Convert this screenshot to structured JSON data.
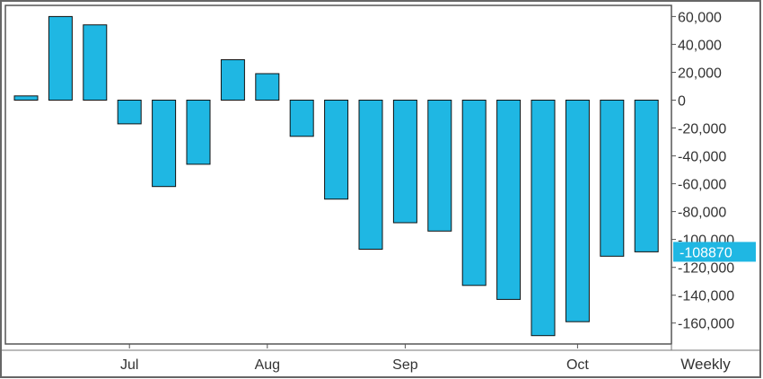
{
  "chart_data": {
    "type": "bar",
    "period": "Weekly",
    "x_month_labels": [
      {
        "label": "Jul",
        "at_bar": 3
      },
      {
        "label": "Aug",
        "at_bar": 7
      },
      {
        "label": "Sep",
        "at_bar": 11
      },
      {
        "label": "Oct",
        "at_bar": 16
      }
    ],
    "values": [
      3000,
      60000,
      54000,
      -17000,
      -62000,
      -46000,
      29000,
      19000,
      -26000,
      -71000,
      -107000,
      -88000,
      -94000,
      -133000,
      -143000,
      -169000,
      -159000,
      -112000,
      -108870
    ],
    "ylim": [
      -175000,
      68000
    ],
    "y_ticks": [
      {
        "value": 60000,
        "label": "60,000"
      },
      {
        "value": 40000,
        "label": "40,000"
      },
      {
        "value": 20000,
        "label": "20,000"
      },
      {
        "value": 0,
        "label": "0"
      },
      {
        "value": -20000,
        "label": "-20,000"
      },
      {
        "value": -40000,
        "label": "-40,000"
      },
      {
        "value": -60000,
        "label": "-60,000"
      },
      {
        "value": -80000,
        "label": "-80,000"
      },
      {
        "value": -100000,
        "label": "-100,000"
      },
      {
        "value": -120000,
        "label": "-120,000"
      },
      {
        "value": -140000,
        "label": "-140,000"
      },
      {
        "value": -160000,
        "label": "-160,000"
      }
    ],
    "last_value_label": "-108870",
    "bar_color": "#1fb7e3",
    "bar_stroke": "#111111",
    "last_value_bg": "#1fb7e3",
    "grid": false,
    "title": "",
    "xlabel": "",
    "ylabel": ""
  }
}
